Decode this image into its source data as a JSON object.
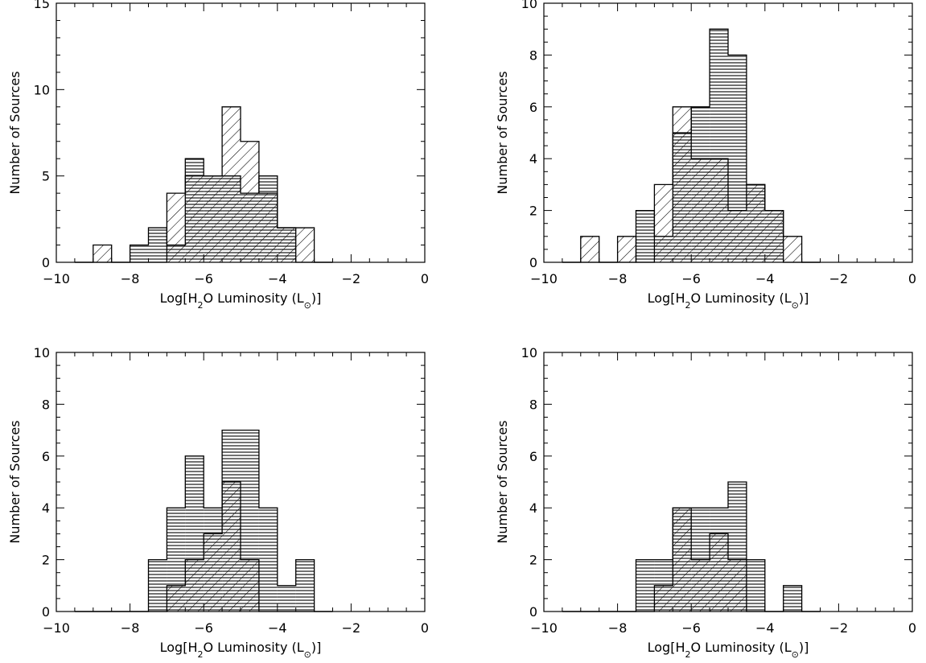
{
  "chart_data": [
    {
      "type": "histogram",
      "panel": "top-left",
      "xlabel_parts": {
        "pre": "Log[H",
        "sub": "2",
        "mid": "O Luminosity (L",
        "sym": "⊙",
        "post": ")]"
      },
      "ylabel": "Number of Sources",
      "xlim": [
        -10,
        0
      ],
      "ylim": [
        0,
        15
      ],
      "xticks": [
        -10,
        -8,
        -6,
        -4,
        -2,
        0
      ],
      "yticks": [
        0,
        5,
        10,
        15
      ],
      "bin_edges": [
        -9.5,
        -9.0,
        -8.5,
        -8.0,
        -7.5,
        -7.0,
        -6.5,
        -6.0,
        -5.5,
        -5.0,
        -4.5,
        -4.0,
        -3.5,
        -3.0,
        -2.5
      ],
      "series": [
        {
          "pattern": "horizontal",
          "counts": [
            0,
            0,
            0,
            1,
            2,
            1,
            6,
            5,
            5,
            4,
            5,
            2,
            0,
            0
          ]
        },
        {
          "pattern": "diagonal",
          "counts": [
            0,
            1,
            0,
            0,
            0,
            4,
            5,
            5,
            9,
            7,
            4,
            2,
            2,
            0
          ]
        }
      ]
    },
    {
      "type": "histogram",
      "panel": "top-right",
      "xlabel_parts": {
        "pre": "Log[H",
        "sub": "2",
        "mid": "O Luminosity (L",
        "sym": "⊙",
        "post": ")]"
      },
      "ylabel": "Number of Sources",
      "xlim": [
        -10,
        0
      ],
      "ylim": [
        0,
        10
      ],
      "xticks": [
        -10,
        -8,
        -6,
        -4,
        -2,
        0
      ],
      "yticks": [
        0,
        2,
        4,
        6,
        8,
        10
      ],
      "bin_edges": [
        -9.5,
        -9.0,
        -8.5,
        -8.0,
        -7.5,
        -7.0,
        -6.5,
        -6.0,
        -5.5,
        -5.0,
        -4.5,
        -4.0,
        -3.5,
        -3.0,
        -2.5
      ],
      "series": [
        {
          "pattern": "horizontal",
          "counts": [
            0,
            0,
            0,
            0,
            2,
            1,
            5,
            6,
            9,
            8,
            3,
            2,
            0,
            0
          ]
        },
        {
          "pattern": "diagonal",
          "counts": [
            0,
            1,
            0,
            1,
            0,
            3,
            6,
            4,
            4,
            2,
            3,
            2,
            1,
            0
          ]
        }
      ]
    },
    {
      "type": "histogram",
      "panel": "bottom-left",
      "xlabel_parts": {
        "pre": "Log[H",
        "sub": "2",
        "mid": "O Luminosity (L",
        "sym": "⊙",
        "post": ")]"
      },
      "ylabel": "Number of Sources",
      "xlim": [
        -10,
        0
      ],
      "ylim": [
        0,
        10
      ],
      "xticks": [
        -10,
        -8,
        -6,
        -4,
        -2,
        0
      ],
      "yticks": [
        0,
        2,
        4,
        6,
        8,
        10
      ],
      "bin_edges": [
        -9.5,
        -9.0,
        -8.5,
        -8.0,
        -7.5,
        -7.0,
        -6.5,
        -6.0,
        -5.5,
        -5.0,
        -4.5,
        -4.0,
        -3.5,
        -3.0,
        -2.5
      ],
      "series": [
        {
          "pattern": "horizontal",
          "counts": [
            0,
            0,
            0,
            0,
            2,
            4,
            6,
            4,
            7,
            7,
            4,
            1,
            2,
            0
          ]
        },
        {
          "pattern": "diagonal",
          "counts": [
            0,
            0,
            0,
            0,
            0,
            1,
            2,
            3,
            5,
            2,
            0,
            0,
            0,
            0
          ]
        }
      ]
    },
    {
      "type": "histogram",
      "panel": "bottom-right",
      "xlabel_parts": {
        "pre": "Log[H",
        "sub": "2",
        "mid": "O Luminosity (L",
        "sym": "⊙",
        "post": ")]"
      },
      "ylabel": "Number of Sources",
      "xlim": [
        -10,
        0
      ],
      "ylim": [
        0,
        10
      ],
      "xticks": [
        -10,
        -8,
        -6,
        -4,
        -2,
        0
      ],
      "yticks": [
        0,
        2,
        4,
        6,
        8,
        10
      ],
      "bin_edges": [
        -9.5,
        -9.0,
        -8.5,
        -8.0,
        -7.5,
        -7.0,
        -6.5,
        -6.0,
        -5.5,
        -5.0,
        -4.5,
        -4.0,
        -3.5,
        -3.0,
        -2.5
      ],
      "series": [
        {
          "pattern": "horizontal",
          "counts": [
            0,
            0,
            0,
            0,
            2,
            2,
            4,
            4,
            4,
            5,
            2,
            0,
            1,
            0
          ]
        },
        {
          "pattern": "diagonal",
          "counts": [
            0,
            0,
            0,
            0,
            0,
            1,
            4,
            2,
            3,
            2,
            0,
            0,
            0,
            0
          ]
        }
      ]
    }
  ]
}
